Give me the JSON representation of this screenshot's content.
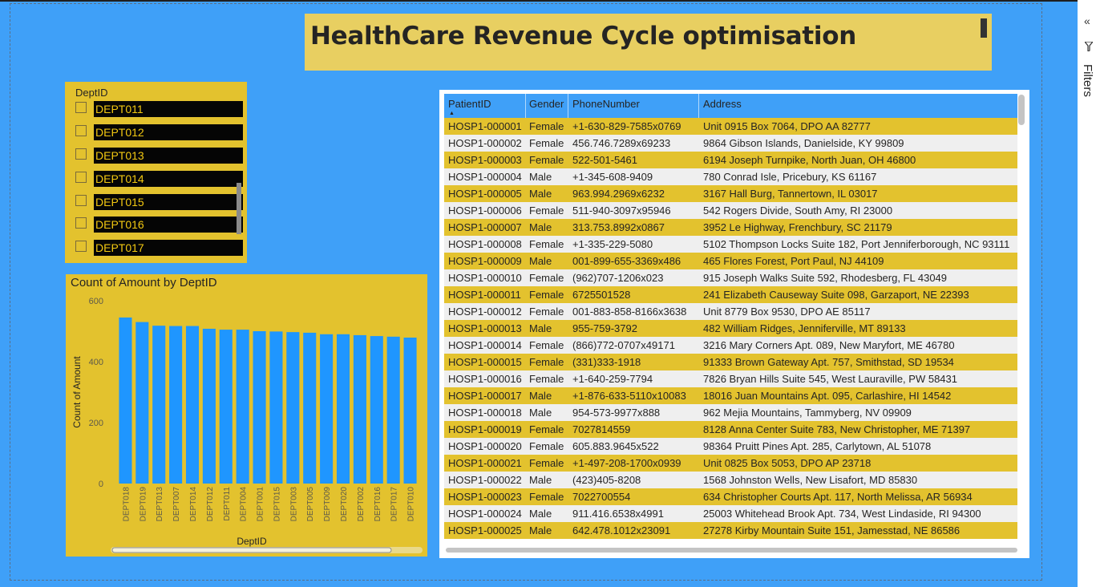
{
  "report": {
    "title": "HealthCare Revenue Cycle optimisation"
  },
  "filters_pane": {
    "label": "Filters",
    "collapse_icon": "double-chevron-icon",
    "filter_icon": "funnel-icon"
  },
  "slicer": {
    "header": "DeptID",
    "items": [
      {
        "label": "DEPT011"
      },
      {
        "label": "DEPT012"
      },
      {
        "label": "DEPT013"
      },
      {
        "label": "DEPT014"
      },
      {
        "label": "DEPT015"
      },
      {
        "label": "DEPT016"
      },
      {
        "label": "DEPT017"
      }
    ]
  },
  "chart_data": {
    "type": "bar",
    "title": "Count of Amount by DeptID",
    "xlabel": "DeptID",
    "ylabel": "Count of Amount",
    "ylim": [
      0,
      600
    ],
    "yticks": [
      0,
      200,
      400,
      600
    ],
    "categories": [
      "DEPT018",
      "DEPT019",
      "DEPT013",
      "DEPT007",
      "DEPT014",
      "DEPT012",
      "DEPT011",
      "DEPT004",
      "DEPT001",
      "DEPT015",
      "DEPT003",
      "DEPT005",
      "DEPT009",
      "DEPT020",
      "DEPT002",
      "DEPT016",
      "DEPT017",
      "DEPT010"
    ],
    "values": [
      545,
      530,
      518,
      517,
      517,
      508,
      505,
      505,
      500,
      499,
      497,
      495,
      490,
      490,
      487,
      484,
      482,
      479
    ],
    "bar_color": "#1f96ff",
    "grid": false
  },
  "table": {
    "columns": [
      "PatientID",
      "Gender",
      "PhoneNumber",
      "Address"
    ],
    "sorted_column": "PatientID",
    "rows": [
      [
        "HOSP1-000001",
        "Female",
        "+1-630-829-7585x0769",
        "Unit 0915 Box 7064, DPO AA 82777"
      ],
      [
        "HOSP1-000002",
        "Female",
        "456.746.7289x69233",
        "9864 Gibson Islands, Danielside, KY 99809"
      ],
      [
        "HOSP1-000003",
        "Female",
        "522-501-5461",
        "6194 Joseph Turnpike, North Juan, OH 46800"
      ],
      [
        "HOSP1-000004",
        "Male",
        "+1-345-608-9409",
        "780 Conrad Isle, Pricebury, KS 61167"
      ],
      [
        "HOSP1-000005",
        "Male",
        "963.994.2969x6232",
        "3167 Hall Burg, Tannertown, IL 03017"
      ],
      [
        "HOSP1-000006",
        "Female",
        "511-940-3097x95946",
        "542 Rogers Divide, South Amy, RI 23000"
      ],
      [
        "HOSP1-000007",
        "Male",
        "313.753.8992x0867",
        "3952 Le Highway, Frenchbury, SC 21179"
      ],
      [
        "HOSP1-000008",
        "Female",
        "+1-335-229-5080",
        "5102 Thompson Locks Suite 182, Port Jenniferborough, NC 93111"
      ],
      [
        "HOSP1-000009",
        "Male",
        "001-899-655-3369x486",
        "465 Flores Forest, Port Paul, NJ 44109"
      ],
      [
        "HOSP1-000010",
        "Female",
        "(962)707-1206x023",
        "915 Joseph Walks Suite 592, Rhodesberg, FL 43049"
      ],
      [
        "HOSP1-000011",
        "Female",
        "6725501528",
        "241 Elizabeth Causeway Suite 098, Garzaport, NE 22393"
      ],
      [
        "HOSP1-000012",
        "Female",
        "001-883-858-8166x3638",
        "Unit 8779 Box 9530, DPO AE 85117"
      ],
      [
        "HOSP1-000013",
        "Male",
        "955-759-3792",
        "482 William Ridges, Jenniferville, MT 89133"
      ],
      [
        "HOSP1-000014",
        "Female",
        "(866)772-0707x49171",
        "3216 Mary Corners Apt. 089, New Maryfort, ME 46780"
      ],
      [
        "HOSP1-000015",
        "Female",
        "(331)333-1918",
        "91333 Brown Gateway Apt. 757, Smithstad, SD 19534"
      ],
      [
        "HOSP1-000016",
        "Female",
        "+1-640-259-7794",
        "7826 Bryan Hills Suite 545, West Lauraville, PW 58431"
      ],
      [
        "HOSP1-000017",
        "Male",
        "+1-876-633-5110x10083",
        "18016 Juan Mountains Apt. 095, Carlashire, HI 14542"
      ],
      [
        "HOSP1-000018",
        "Male",
        "954-573-9977x888",
        "962 Mejia Mountains, Tammyberg, NV 09909"
      ],
      [
        "HOSP1-000019",
        "Female",
        "7027814559",
        "8128 Anna Center Suite 783, New Christopher, ME 71397"
      ],
      [
        "HOSP1-000020",
        "Female",
        "605.883.9645x522",
        "98364 Pruitt Pines Apt. 285, Carlytown, AL 51078"
      ],
      [
        "HOSP1-000021",
        "Female",
        "+1-497-208-1700x0939",
        "Unit 0825 Box 5053, DPO AP 23718"
      ],
      [
        "HOSP1-000022",
        "Male",
        "(423)405-8208",
        "1568 Johnston Wells, New Lisafort, MD 85830"
      ],
      [
        "HOSP1-000023",
        "Female",
        "7022700554",
        "634 Christopher Courts Apt. 117, North Melissa, AR 56934"
      ],
      [
        "HOSP1-000024",
        "Male",
        "911.416.6538x4991",
        "25003 Whitehead Brook Apt. 734, West Lindaside, RI 94300"
      ],
      [
        "HOSP1-000025",
        "Male",
        "642.478.1012x23091",
        "27278 Kirby Mountain Suite 151, Jamesstad, NE 86586"
      ]
    ]
  }
}
